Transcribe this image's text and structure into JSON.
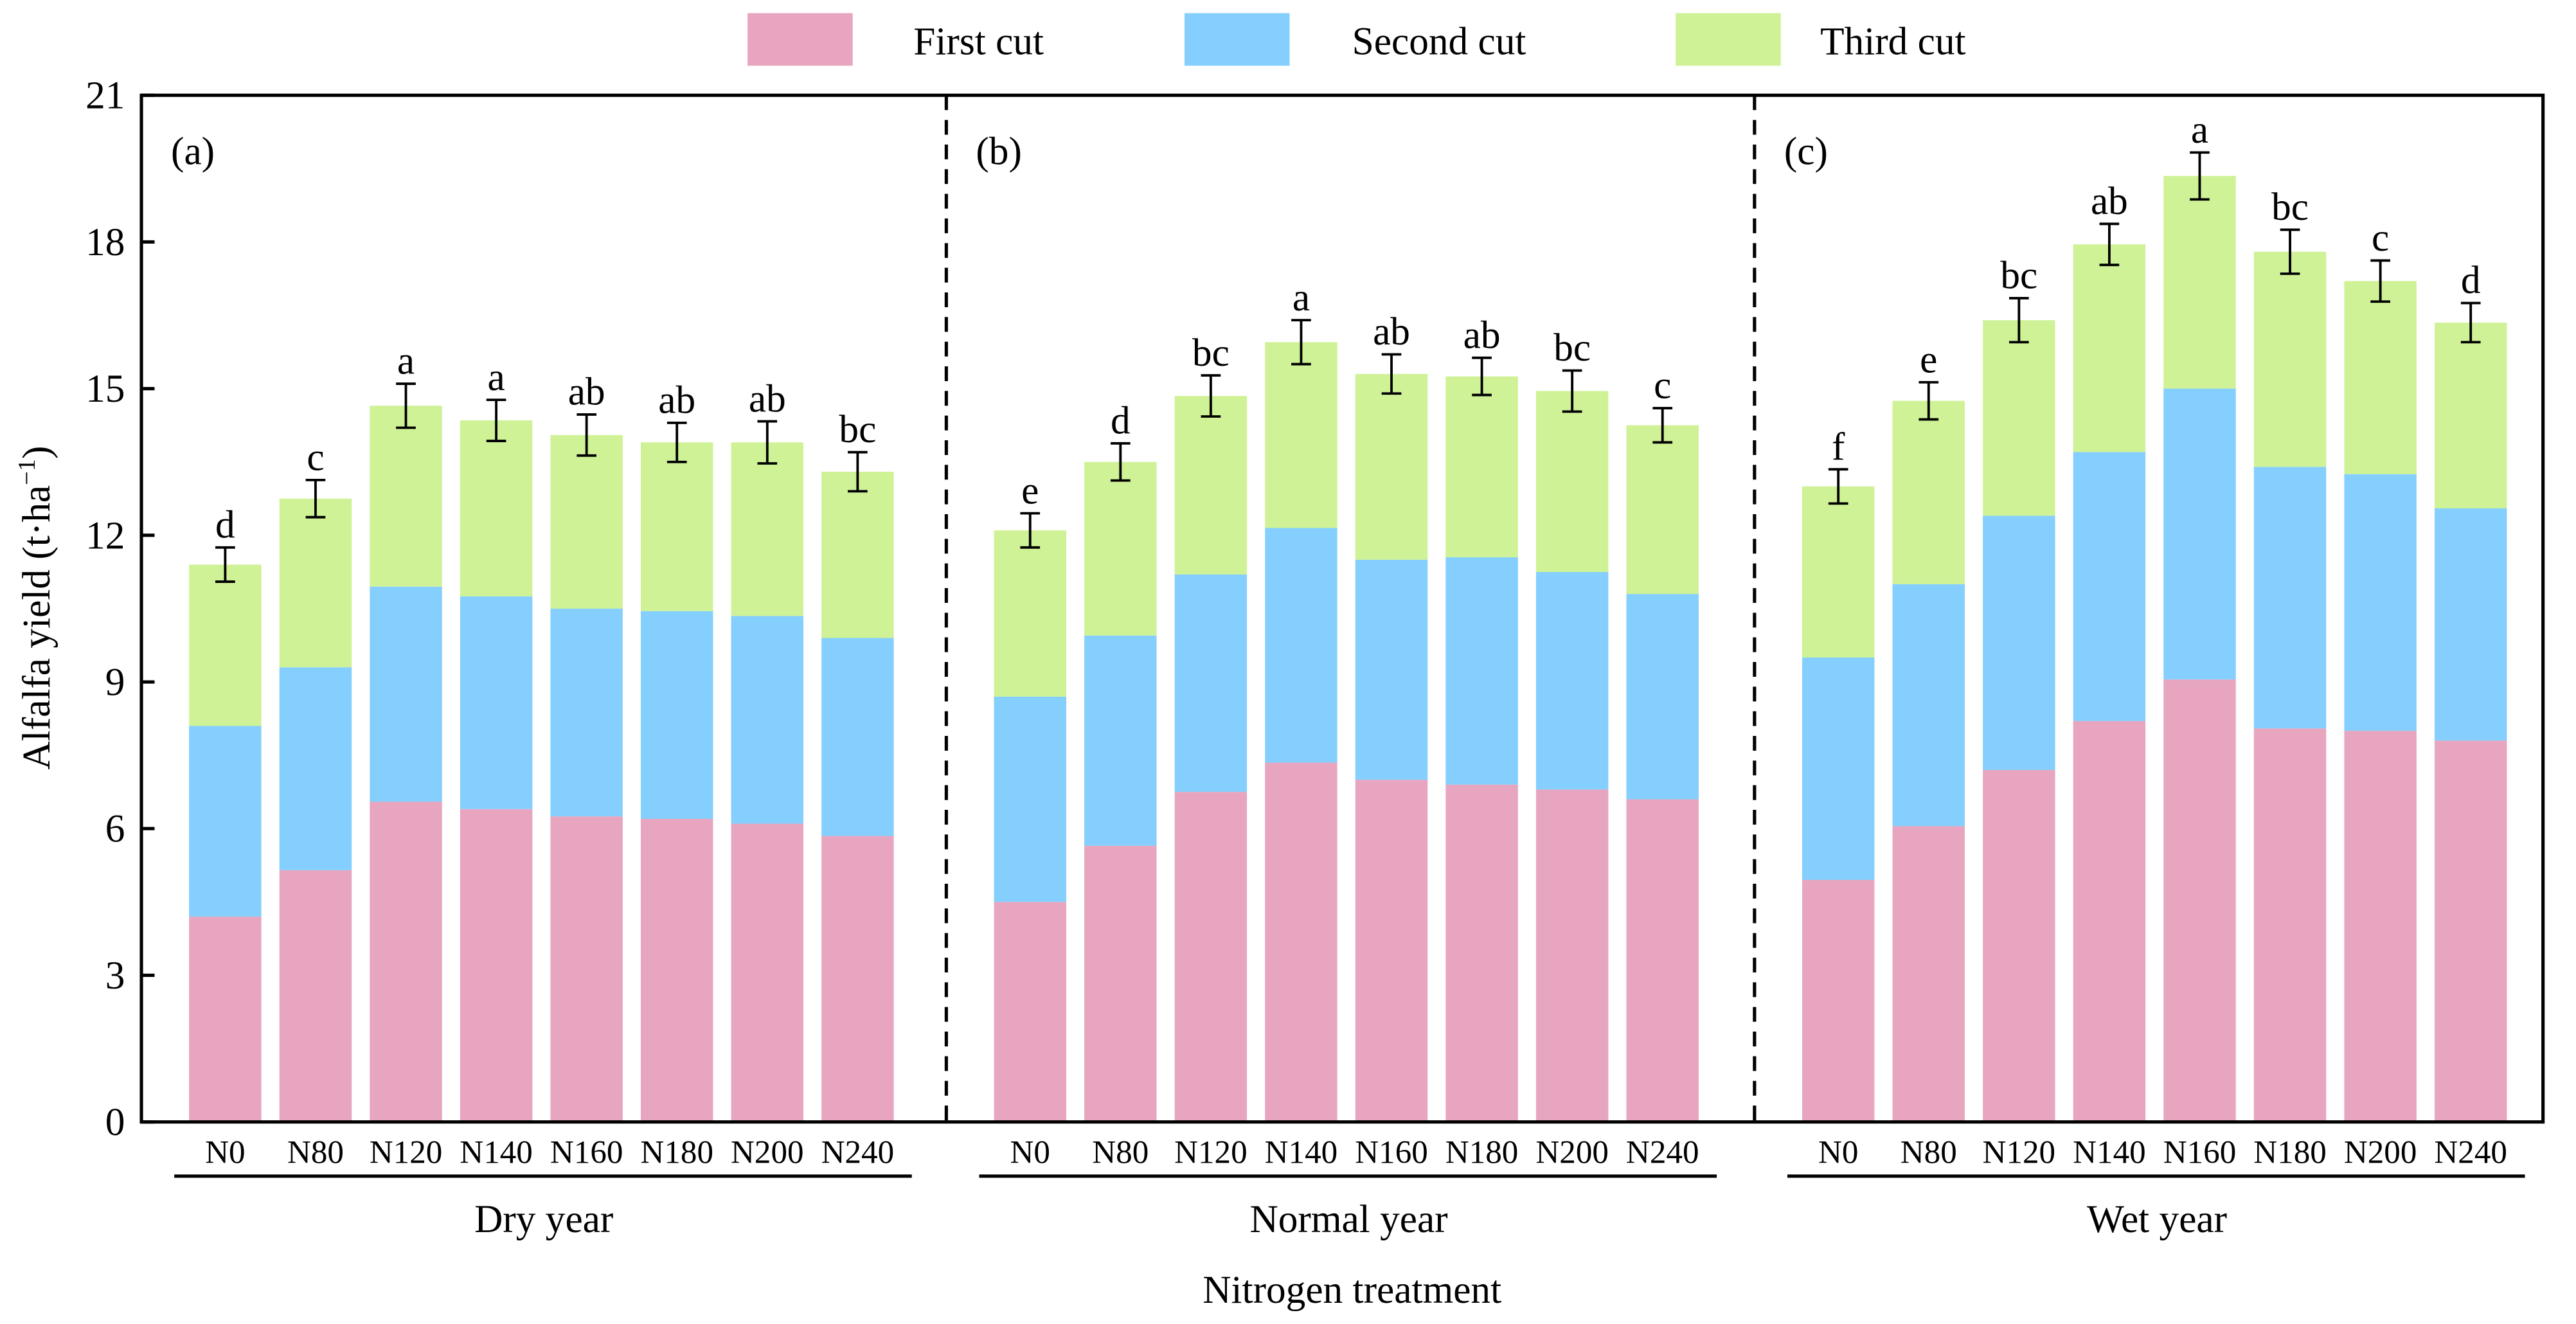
{
  "chart_data": {
    "type": "bar",
    "stacked": true,
    "ylabel": "Alfalfa yield (t·ha",
    "ylabel_sup": "−1",
    "ylabel_close": ")",
    "xlabel": "Nitrogen treatment",
    "ylim": [
      0,
      21
    ],
    "yticks": [
      0,
      3,
      6,
      9,
      12,
      15,
      18,
      21
    ],
    "legend_position": "top",
    "series_names": [
      "First cut",
      "Second cut",
      "Third cut"
    ],
    "colors": [
      "#e8a5c0",
      "#84cffd",
      "#cff296"
    ],
    "categories": [
      "N0",
      "N80",
      "N120",
      "N140",
      "N160",
      "N180",
      "N200",
      "N240"
    ],
    "panels": [
      {
        "tag": "(a)",
        "group": "Dry year",
        "series": [
          [
            4.2,
            5.15,
            6.55,
            6.4,
            6.25,
            6.2,
            6.1,
            5.85
          ],
          [
            3.9,
            4.15,
            4.4,
            4.35,
            4.25,
            4.25,
            4.25,
            4.05
          ],
          [
            3.3,
            3.45,
            3.7,
            3.6,
            3.55,
            3.45,
            3.55,
            3.4
          ]
        ],
        "errors": [
          0.35,
          0.38,
          0.45,
          0.42,
          0.42,
          0.4,
          0.43,
          0.4
        ],
        "letters": [
          "d",
          "c",
          "a",
          "a",
          "ab",
          "ab",
          "ab",
          "bc"
        ]
      },
      {
        "tag": "(b)",
        "group": "Normal year",
        "series": [
          [
            4.5,
            5.65,
            6.75,
            7.35,
            7.0,
            6.9,
            6.8,
            6.6
          ],
          [
            4.2,
            4.3,
            4.45,
            4.8,
            4.5,
            4.65,
            4.45,
            4.2
          ],
          [
            3.4,
            3.55,
            3.65,
            3.8,
            3.8,
            3.7,
            3.7,
            3.45
          ]
        ],
        "errors": [
          0.35,
          0.38,
          0.42,
          0.45,
          0.4,
          0.38,
          0.42,
          0.35
        ],
        "letters": [
          "e",
          "d",
          "bc",
          "a",
          "ab",
          "ab",
          "bc",
          "c"
        ]
      },
      {
        "tag": "(c)",
        "group": "Wet year",
        "series": [
          [
            4.95,
            6.05,
            7.2,
            8.2,
            9.05,
            8.05,
            8.0,
            7.8
          ],
          [
            4.55,
            4.95,
            5.2,
            5.5,
            5.95,
            5.35,
            5.25,
            4.75
          ],
          [
            3.5,
            3.75,
            4.0,
            4.25,
            4.35,
            4.4,
            3.95,
            3.8
          ]
        ],
        "errors": [
          0.35,
          0.38,
          0.45,
          0.42,
          0.48,
          0.45,
          0.42,
          0.4
        ],
        "letters": [
          "f",
          "e",
          "bc",
          "ab",
          "a",
          "bc",
          "c",
          "d"
        ]
      }
    ]
  }
}
